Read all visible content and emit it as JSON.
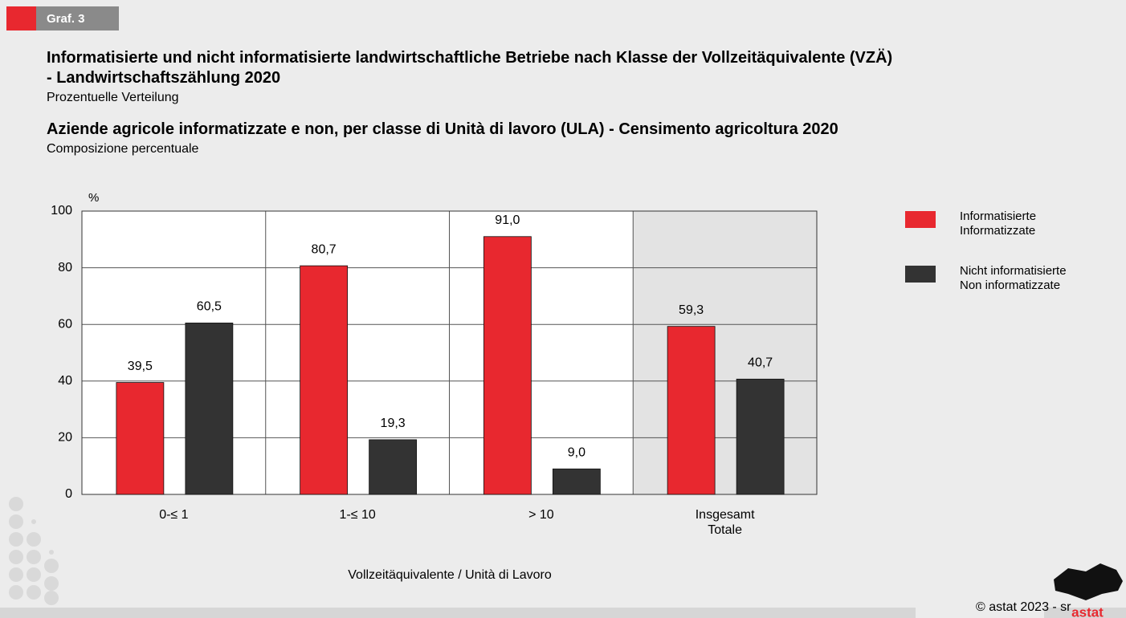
{
  "chart_data": {
    "type": "bar",
    "badge": "Graf. 3",
    "title": "Informatisierte und nicht informatisierte landwirtschaftliche Betriebe nach Klasse der Vollzeitäquivalente (VZÄ)\n- Landwirtschaftszählung 2020",
    "subtitle": "Prozentuelle Verteilung",
    "title_it": "Aziende agricole informatizzate e non, per classe di Unità di lavoro (ULA) - Censimento agricoltura 2020",
    "subtitle_it": "Composizione percentuale",
    "y_unit": "%",
    "xlabel": "Vollzeitäquivalente /  Unità di Lavoro",
    "source": "© astat 2023 - sr",
    "logo": "astat",
    "categories": [
      "0-≤ 1",
      "1-≤ 10",
      "> 10",
      "Insgesamt\nTotale"
    ],
    "series": [
      {
        "name": "Informatisierte\nInformatizzate",
        "color": "#e8282f",
        "values": [
          39.5,
          80.7,
          91.0,
          59.3
        ],
        "value_labels": [
          "39,5",
          "80,7",
          "91,0",
          "59,3"
        ]
      },
      {
        "name": "Nicht informatisierte\nNon informatizzate",
        "color": "#333333",
        "values": [
          60.5,
          19.3,
          9.0,
          40.7
        ],
        "value_labels": [
          "60,5",
          "19,3",
          "9,0",
          "40,7"
        ]
      }
    ],
    "ylim": [
      0,
      100
    ],
    "yticks": [
      0,
      20,
      40,
      60,
      80,
      100
    ],
    "grid": true,
    "legend": "right"
  }
}
